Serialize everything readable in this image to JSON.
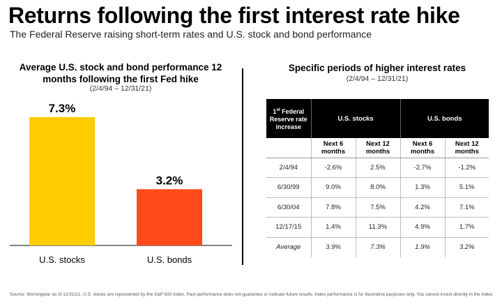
{
  "header": {
    "title": "Returns following the first interest rate hike",
    "subtitle": "The Federal Reserve raising short-term rates and U.S. stock and bond performance"
  },
  "left_panel": {
    "title_line1": "Average U.S. stock and bond performance 12",
    "title_line2": "months following the first Fed hike",
    "subtitle": "(2/4/94 – 12/31/21)"
  },
  "right_panel": {
    "title": "Specific periods of higher interest rates",
    "subtitle": "(2/4/94 – 12/31/21)"
  },
  "colors": {
    "stocks": "#FFCC00",
    "bonds": "#FF4A1C"
  },
  "chart_data": [
    {
      "type": "bar",
      "categories": [
        "U.S. stocks",
        "U.S. bonds"
      ],
      "values": [
        7.3,
        3.2
      ],
      "value_labels": [
        "7.3%",
        "3.2%"
      ],
      "title": "Average U.S. stock and bond performance 12 months following the first Fed hike",
      "xlabel": "",
      "ylabel": "",
      "ylim": [
        0,
        7.3
      ],
      "grid": false
    },
    {
      "type": "table",
      "title": "Specific periods of higher interest rates",
      "header_first_col": {
        "pre": "1",
        "sup": "st",
        "post": " Federal Reserve rate increase"
      },
      "groups": [
        "U.S. stocks",
        "U.S. bonds"
      ],
      "subheaders": [
        "Next 6 months",
        "Next 12 months",
        "Next 6 months",
        "Next 12 months"
      ],
      "rows": [
        [
          "2/4/94",
          "-2.6%",
          "2.5%",
          "-2.7%",
          "-1.2%"
        ],
        [
          "6/30/99",
          "9.0%",
          "8.0%",
          "1.3%",
          "5.1%"
        ],
        [
          "6/30/04",
          "7.8%",
          "7.5%",
          "4.2%",
          "7.1%"
        ],
        [
          "12/17/15",
          "1.4%",
          "11.3%",
          "4.9%",
          "1.7%"
        ],
        [
          "Average",
          "3.9%",
          "7.3%",
          "1.9%",
          "3.2%"
        ]
      ]
    }
  ],
  "footer": {
    "source": "Source: Morningstar as of 12/31/21. U.S. stocks are represented by the S&P 500 index. Past performance does not guarantee or indicate future results. Index performance is for illustrative purposes only. You cannot invest directly in the index."
  }
}
